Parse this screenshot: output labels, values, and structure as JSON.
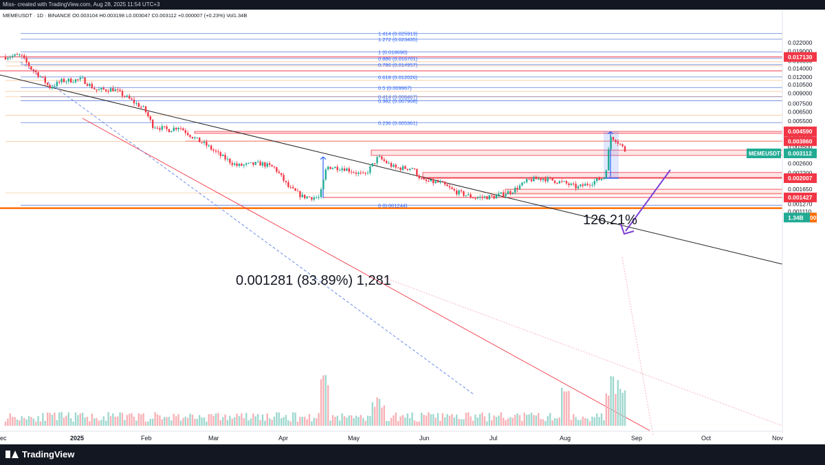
{
  "header": {
    "caption": "Miss- created with TradingView.com, Aug 28, 2025 11:54 UTC+3"
  },
  "footer": {
    "brand": "TradingView"
  },
  "chart_data": {
    "type": "candlestick",
    "legend_line": "MEMEUSDT · 1D · BINANCE  O0.003104 H0.003198 L0.003047 C0.003112 +0.000007 (+0.23%) Vol1.34B",
    "currency": "USDT",
    "x_labels": [
      "ec",
      "2025",
      "Feb",
      "Mar",
      "Apr",
      "May",
      "Jun",
      "Jul",
      "Aug",
      "Sep",
      "Oct",
      "Nov"
    ],
    "y_axis_labels": [
      "0.022000",
      "0.019000",
      "0.016000",
      "0.014000",
      "0.012000",
      "0.010500",
      "0.009000",
      "0.007500",
      "0.006500",
      "0.005500",
      "0.004100",
      "0.003500",
      "0.002600",
      "0.002200",
      "0.001650",
      "0.001270",
      "0.001110"
    ],
    "price_tags": [
      {
        "label": "0.017130",
        "value": 0.01713,
        "color": "#f23645"
      },
      {
        "label": "0.004590",
        "value": 0.00459,
        "color": "#f23645"
      },
      {
        "label": "0.003860",
        "value": 0.00386,
        "color": "#f23645"
      },
      {
        "label": "0.003112",
        "value": 0.003112,
        "color": "#22ab94",
        "symbol": "MEMEUSDT"
      },
      {
        "label": "0.002007",
        "value": 0.002007,
        "color": "#f23645"
      },
      {
        "label": "0.001427",
        "value": 0.001427,
        "color": "#f23645"
      },
      {
        "label": "1.34B",
        "value": 0.001,
        "color": "#22ab94",
        "suffix": "00"
      }
    ],
    "fib_levels": [
      {
        "label": "1.414 (0.025913)",
        "value": 0.025913
      },
      {
        "label": "1.272 (0.023435)",
        "value": 0.023435
      },
      {
        "label": "1 (0.018690)",
        "value": 0.01869
      },
      {
        "label": "0.886 (0.016701)",
        "value": 0.016701
      },
      {
        "label": "0.786 (0.014957)",
        "value": 0.014957
      },
      {
        "label": "0.618 (0.012026)",
        "value": 0.012026
      },
      {
        "label": "0.5 (0.009967)",
        "value": 0.009967
      },
      {
        "label": "0.414 (0.008467)",
        "value": 0.008467
      },
      {
        "label": "0.382 (0.007908)",
        "value": 0.007908
      },
      {
        "label": "0.236 (0.005361)",
        "value": 0.005361
      },
      {
        "label": "0 (0.001244)",
        "value": 0.001244
      }
    ],
    "annotations": [
      {
        "text": "126.21%"
      },
      {
        "text": "0.001281 (83.89%) 1,281"
      }
    ],
    "colors": {
      "up": "#22ab94",
      "down": "#f23645",
      "fib": "#2962ff",
      "purple": "#7b3fd6",
      "orange": "#ff6d00"
    }
  }
}
